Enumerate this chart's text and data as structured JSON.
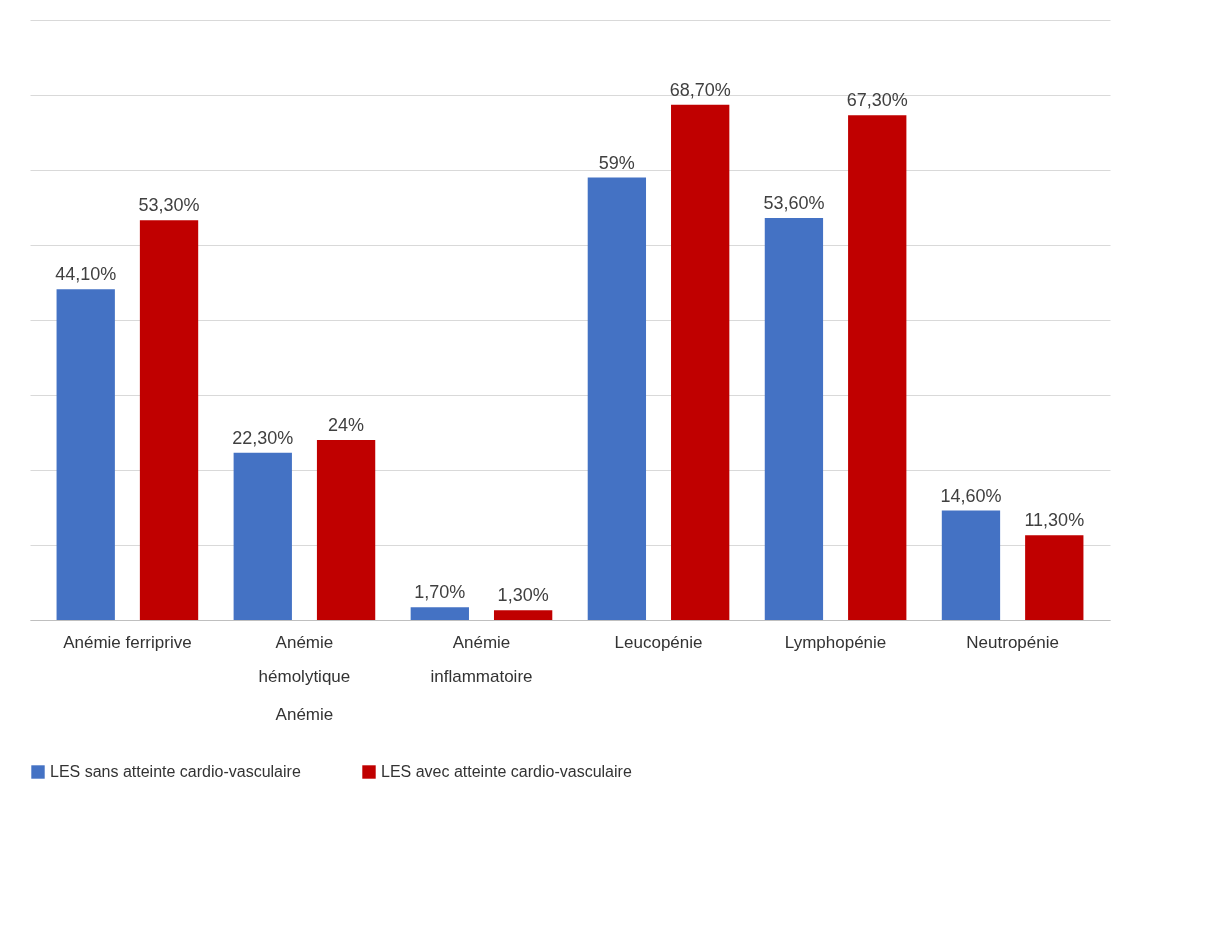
{
  "chart_data": {
    "type": "bar",
    "categories": [
      "Anémie ferriprive",
      "Anémie hémolytique",
      "Anémie inflammatoire",
      "Leucopénie",
      "Lymphopénie",
      "Neutropénie"
    ],
    "series": [
      {
        "name": "LES sans atteinte cardio-vasculaire",
        "color": "#4472c4",
        "values": [
          44.1,
          22.3,
          1.7,
          59,
          53.6,
          14.6
        ],
        "value_labels": [
          "44,10%",
          "22,30%",
          "1,70%",
          "59%",
          "53,60%",
          "14,60%"
        ]
      },
      {
        "name": "LES avec atteinte cardio-vasculaire",
        "color": "#c00000",
        "values": [
          53.3,
          24,
          1.3,
          68.7,
          67.3,
          11.3
        ],
        "value_labels": [
          "53,30%",
          "24%",
          "1,30%",
          "68,70%",
          "67,30%",
          "11,30%"
        ]
      }
    ],
    "ylim": [
      0,
      80
    ],
    "yticks": [
      {
        "value": 0,
        "label": null
      },
      {
        "value": 10,
        "label": null
      },
      {
        "value": 20,
        "label": null
      },
      {
        "value": 30,
        "label": null
      },
      {
        "value": 40,
        "label": null
      },
      {
        "value": 50,
        "label": null
      },
      {
        "value": 60,
        "label": null
      },
      {
        "value": 70,
        "label": null
      },
      {
        "value": 80,
        "label": null
      }
    ],
    "tick_labels": "x",
    "grid": "y",
    "legend": "bottom",
    "annotations": [
      "Anémie"
    ]
  }
}
